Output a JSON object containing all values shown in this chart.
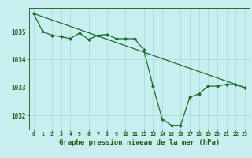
{
  "title": "Graphe pression niveau de la mer (hPa)",
  "bg_color": "#c8eef0",
  "grid_color": "#aadddd",
  "line_color": "#1a6e2a",
  "marker_color": "#1a6e2a",
  "xlim": [
    -0.5,
    23.5
  ],
  "ylim": [
    1031.5,
    1035.85
  ],
  "yticks": [
    1032,
    1033,
    1034,
    1035
  ],
  "xticks": [
    0,
    1,
    2,
    3,
    4,
    5,
    6,
    7,
    8,
    9,
    10,
    11,
    12,
    13,
    14,
    15,
    16,
    17,
    18,
    19,
    20,
    21,
    22,
    23
  ],
  "series1_x": [
    0,
    1,
    2,
    3,
    4,
    5,
    6,
    7,
    8,
    9,
    10,
    11,
    12,
    13,
    14,
    15,
    16,
    17,
    18,
    19,
    20,
    21,
    22,
    23
  ],
  "series1_y": [
    1035.65,
    1035.0,
    1034.87,
    1034.82,
    1034.75,
    1034.95,
    1034.72,
    1034.87,
    1034.9,
    1034.75,
    1034.75,
    1034.75,
    1034.35,
    1033.05,
    1031.88,
    1031.65,
    1031.65,
    1032.65,
    1032.78,
    1033.05,
    1033.05,
    1033.12,
    1033.1,
    1033.0
  ],
  "series2_x": [
    0,
    23
  ],
  "series2_y": [
    1035.65,
    1033.0
  ],
  "title_fontsize": 6.5
}
